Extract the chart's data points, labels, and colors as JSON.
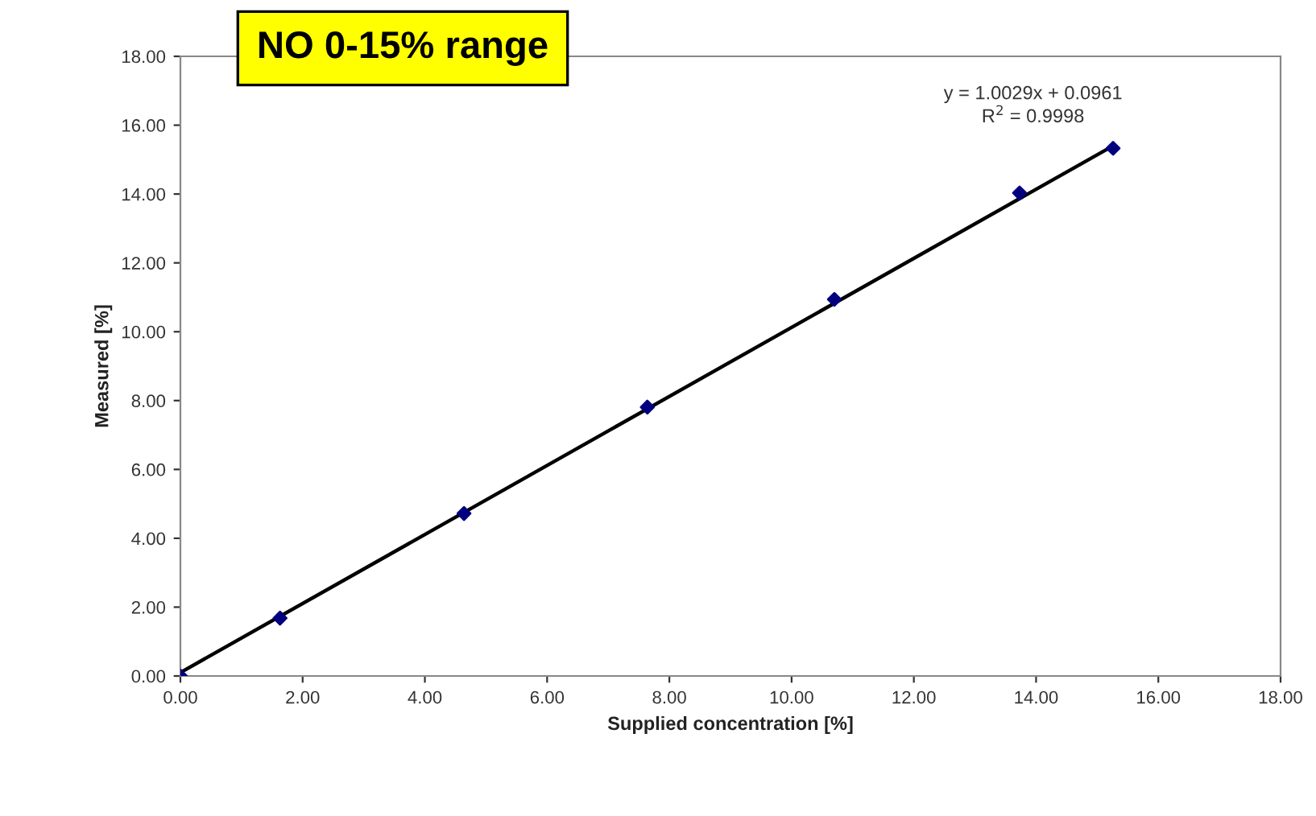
{
  "chart_data": {
    "type": "scatter",
    "title": "NO 0-15% range",
    "xlabel": "Supplied concentration [%]",
    "ylabel": "Measured [%]",
    "annotations": [
      "y = 1.0029x + 0.0961\nR$^{2}$ = 0.9998"
    ],
    "xlim": [
      0,
      18
    ],
    "ylim": [
      0,
      18
    ],
    "xticks": [
      {
        "value": 0,
        "label": "0.00"
      },
      {
        "value": 2,
        "label": "2.00"
      },
      {
        "value": 4,
        "label": "4.00"
      },
      {
        "value": 6,
        "label": "6.00"
      },
      {
        "value": 8,
        "label": "8.00"
      },
      {
        "value": 10,
        "label": "10.00"
      },
      {
        "value": 12,
        "label": "12.00"
      },
      {
        "value": 14,
        "label": "14.00"
      },
      {
        "value": 16,
        "label": "16.00"
      },
      {
        "value": 18,
        "label": "18.00"
      }
    ],
    "yticks": [
      {
        "value": 0,
        "label": "0.00"
      },
      {
        "value": 2,
        "label": "2.00"
      },
      {
        "value": 4,
        "label": "4.00"
      },
      {
        "value": 6,
        "label": "6.00"
      },
      {
        "value": 8,
        "label": "8.00"
      },
      {
        "value": 10,
        "label": "10.00"
      },
      {
        "value": 12,
        "label": "12.00"
      },
      {
        "value": 14,
        "label": "14.00"
      },
      {
        "value": 16,
        "label": "16.00"
      },
      {
        "value": 18,
        "label": "18.00"
      }
    ],
    "grid": false,
    "legend": false,
    "series": [
      {
        "type": "line",
        "color": "#000000",
        "x": [
          0,
          15.26
        ],
        "values": [
          0.1,
          15.4
        ],
        "marker": "none",
        "line_style": "solid"
      },
      {
        "color": "#00007f",
        "x": [
          0,
          1.63,
          4.64,
          7.64,
          10.7,
          13.73,
          15.26
        ],
        "values": [
          0,
          1.68,
          4.72,
          7.81,
          10.94,
          14.03,
          15.33
        ],
        "marker": "diamond"
      }
    ]
  }
}
